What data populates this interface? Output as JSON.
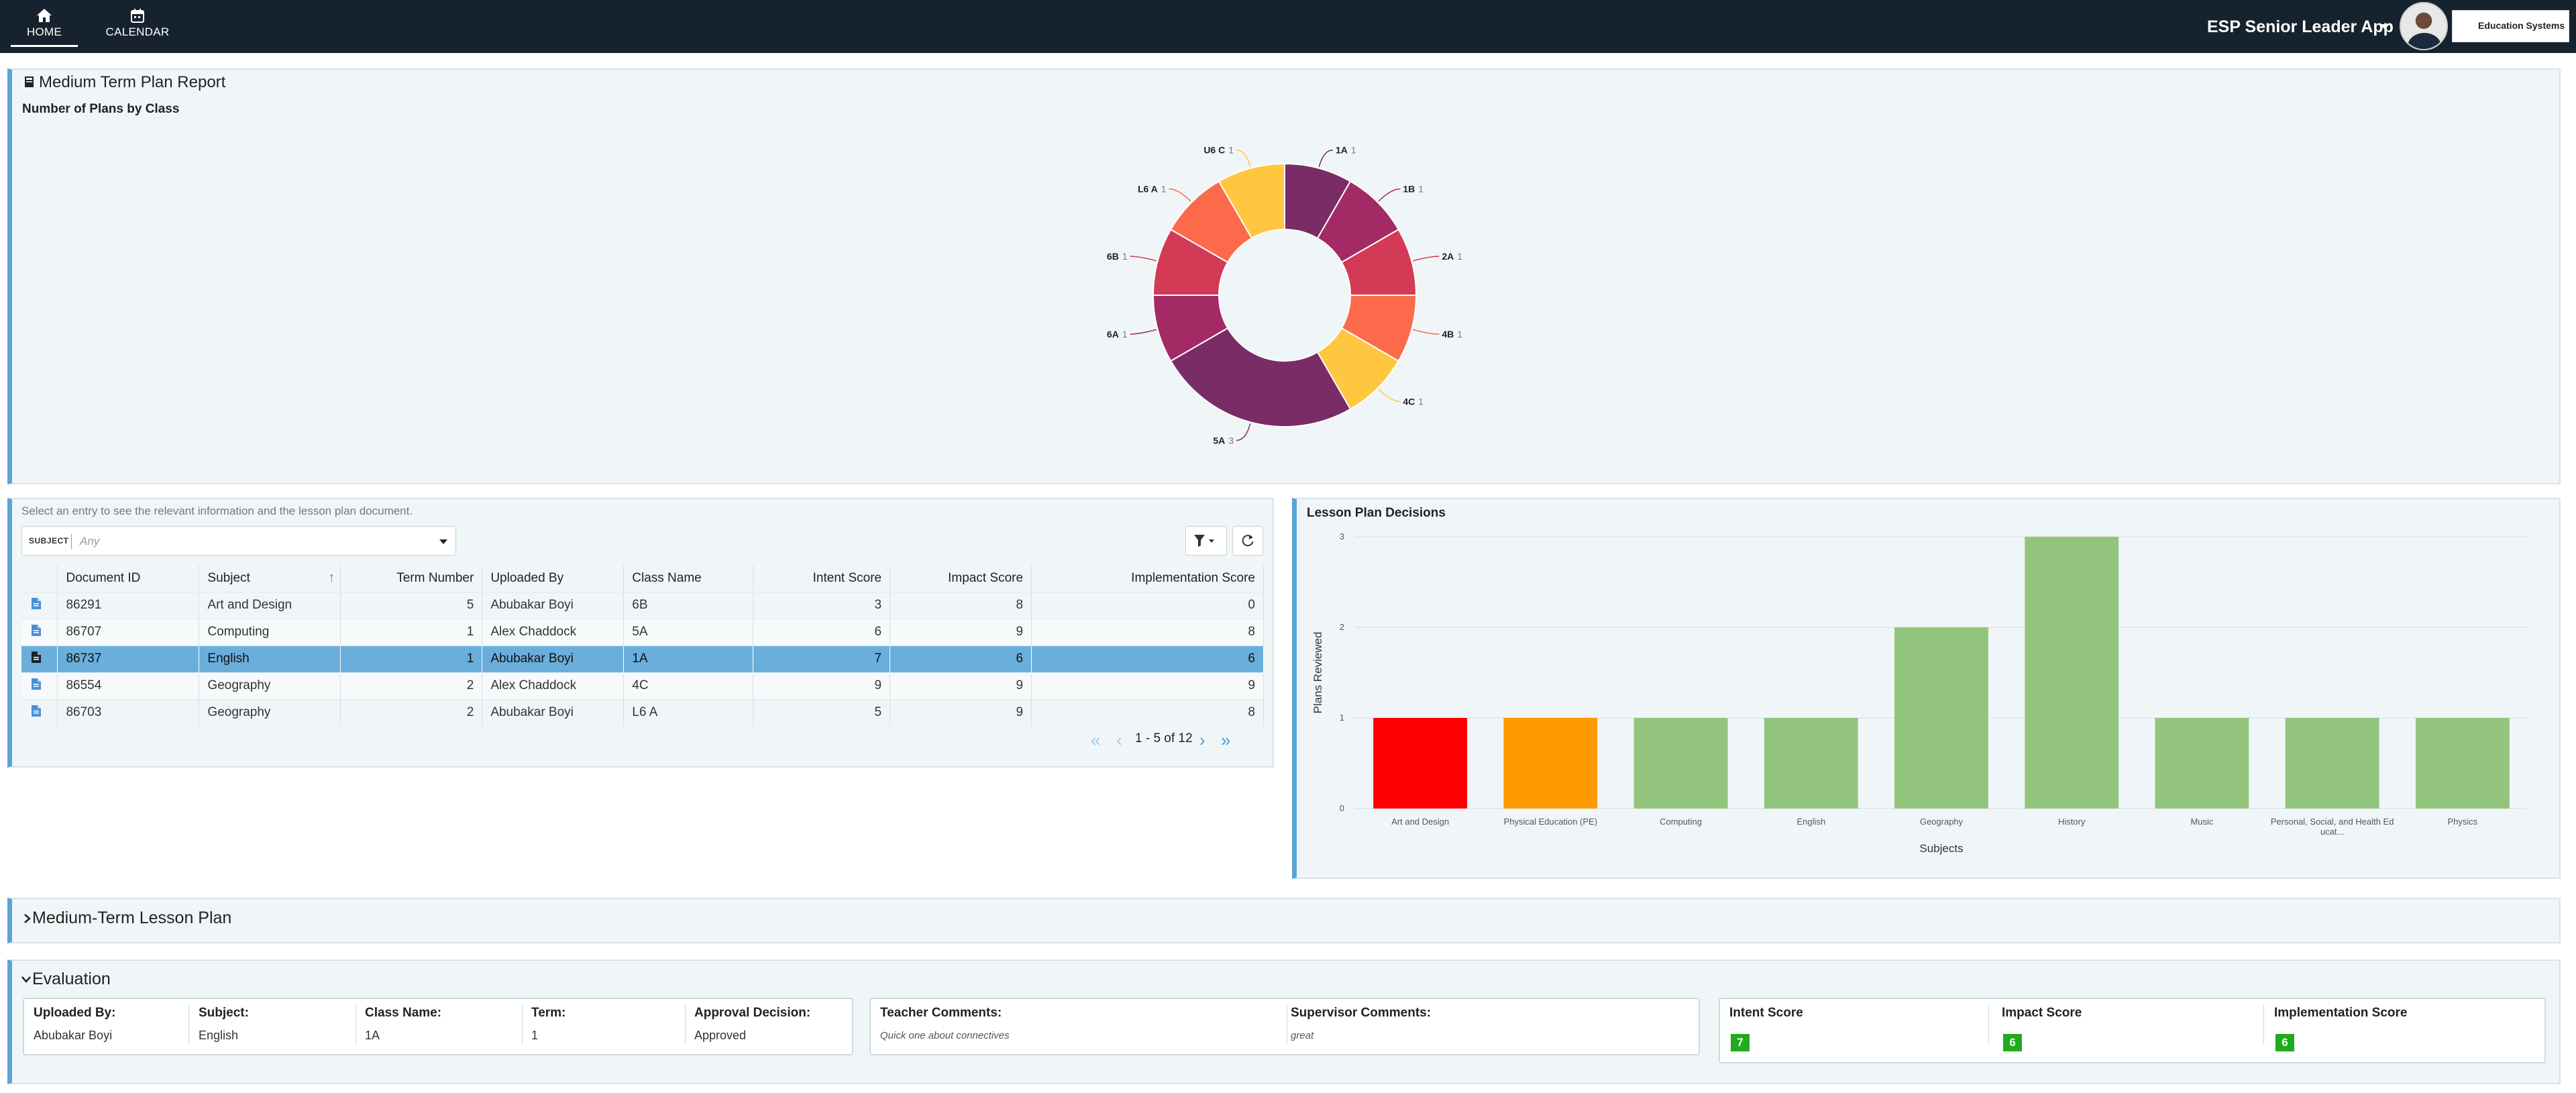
{
  "nav": {
    "home_label": "HOME",
    "calendar_label": "CALENDAR",
    "app_title": "ESP Senior Leader App",
    "org_name": "Education Systems"
  },
  "report": {
    "title": "Medium Term Plan Report",
    "chart_title": "Number of Plans by Class"
  },
  "table_panel": {
    "hint": "Select an entry to see the relevant information and the lesson plan document.",
    "filter_label": "SUBJECT",
    "filter_placeholder": "Any",
    "columns": [
      "Document ID",
      "Subject",
      "Term Number",
      "Uploaded By",
      "Class Name",
      "Intent Score",
      "Impact Score",
      "Implementation Score"
    ],
    "rows": [
      {
        "id": "86291",
        "subject": "Art and Design",
        "term": "5",
        "uploaded_by": "Abubakar Boyi",
        "class_name": "6B",
        "intent": "3",
        "impact": "8",
        "implementation": "0"
      },
      {
        "id": "86707",
        "subject": "Computing",
        "term": "1",
        "uploaded_by": "Alex Chaddock",
        "class_name": "5A",
        "intent": "6",
        "impact": "9",
        "implementation": "8"
      },
      {
        "id": "86737",
        "subject": "English",
        "term": "1",
        "uploaded_by": "Abubakar Boyi",
        "class_name": "1A",
        "intent": "7",
        "impact": "6",
        "implementation": "6"
      },
      {
        "id": "86554",
        "subject": "Geography",
        "term": "2",
        "uploaded_by": "Alex Chaddock",
        "class_name": "4C",
        "intent": "9",
        "impact": "9",
        "implementation": "9"
      },
      {
        "id": "86703",
        "subject": "Geography",
        "term": "2",
        "uploaded_by": "Abubakar Boyi",
        "class_name": "L6 A",
        "intent": "5",
        "impact": "9",
        "implementation": "8"
      }
    ],
    "selected_row": 2,
    "pager": "1 - 5 of 12"
  },
  "decisions": {
    "title": "Lesson Plan Decisions"
  },
  "collapsible": {
    "lesson_plan_title": "Medium-Term Lesson Plan",
    "evaluation_title": "Evaluation"
  },
  "evaluation": {
    "uploaded_by_label": "Uploaded By:",
    "uploaded_by": "Abubakar Boyi",
    "subject_label": "Subject:",
    "subject": "English",
    "class_label": "Class Name:",
    "class_name": "1A",
    "term_label": "Term:",
    "term": "1",
    "approval_label": "Approval Decision:",
    "approval": "Approved",
    "teacher_comments_label": "Teacher Comments:",
    "teacher_comments": "Quick one about connectives",
    "supervisor_comments_label": "Supervisor Comments:",
    "supervisor_comments": "great",
    "intent_label": "Intent Score",
    "intent": "7",
    "impact_label": "Impact Score",
    "impact": "6",
    "implementation_label": "Implementation Score",
    "implementation": "6",
    "score_color": "#1faa1f"
  },
  "chart_data": [
    {
      "type": "pie",
      "title": "Number of Plans by Class",
      "categories": [
        "1A",
        "1B",
        "2A",
        "4B",
        "4C",
        "5A",
        "6A",
        "6B",
        "L6 A",
        "U6 C"
      ],
      "values": [
        1,
        1,
        1,
        1,
        1,
        3,
        1,
        1,
        1,
        1
      ],
      "colors": [
        "#7a2c66",
        "#a42a66",
        "#d33a55",
        "#fb6b4b",
        "#ffc640",
        "#7a2c66",
        "#a42a66",
        "#d33a55",
        "#fb6b4b",
        "#ffc640"
      ],
      "legend": "none"
    },
    {
      "type": "bar",
      "title": "Lesson Plan Decisions",
      "categories": [
        "Art and Design",
        "Physical Education (PE)",
        "Computing",
        "English",
        "Geography",
        "History",
        "Music",
        "Personal, Social, and Health Educat...",
        "Physics"
      ],
      "values": [
        1,
        1,
        1,
        1,
        2,
        3,
        1,
        1,
        1
      ],
      "colors": [
        "#ff0000",
        "#ff9900",
        "#93c47d",
        "#93c47d",
        "#93c47d",
        "#93c47d",
        "#93c47d",
        "#93c47d",
        "#93c47d"
      ],
      "xlabel": "Subjects",
      "ylabel": "Plans Reviewed",
      "ylim": [
        0,
        3
      ],
      "yticks": [
        "0",
        "1",
        "2",
        "3"
      ],
      "grid": true
    }
  ]
}
